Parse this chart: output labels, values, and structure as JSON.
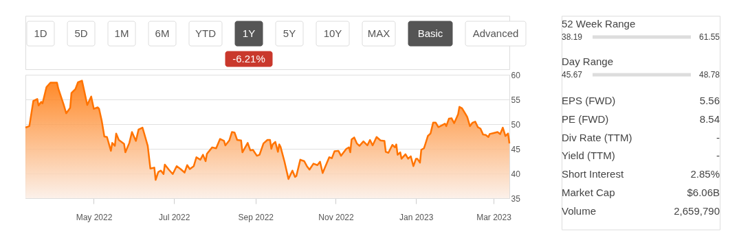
{
  "chart_data": [
    {
      "type": "area",
      "x": [
        "2022-03-10",
        "2022-03-13",
        "2022-03-16",
        "2022-03-19",
        "2022-03-20",
        "2022-03-22",
        "2022-03-23",
        "2022-03-26",
        "2022-03-29",
        "2022-04-03",
        "2022-04-04",
        "2022-04-08",
        "2022-04-10",
        "2022-04-13",
        "2022-04-14",
        "2022-04-17",
        "2022-04-19",
        "2022-04-22",
        "2022-04-24",
        "2022-04-26",
        "2022-04-29",
        "2022-05-01",
        "2022-05-04",
        "2022-05-05",
        "2022-05-07",
        "2022-05-09",
        "2022-05-11",
        "2022-05-14",
        "2022-05-15",
        "2022-05-17",
        "2022-05-18",
        "2022-05-20",
        "2022-05-24",
        "2022-05-25",
        "2022-05-28",
        "2022-05-30",
        "2022-06-02",
        "2022-06-04",
        "2022-06-07",
        "2022-06-08",
        "2022-06-11",
        "2022-06-13",
        "2022-06-16",
        "2022-06-17",
        "2022-06-19",
        "2022-06-21",
        "2022-06-23",
        "2022-06-24",
        "2022-06-27",
        "2022-06-30",
        "2022-07-03",
        "2022-07-06",
        "2022-07-09",
        "2022-07-11",
        "2022-07-13",
        "2022-07-16",
        "2022-07-18",
        "2022-07-21",
        "2022-07-23",
        "2022-07-25",
        "2022-07-26",
        "2022-07-30",
        "2022-08-02",
        "2022-08-05",
        "2022-08-08",
        "2022-08-09",
        "2022-08-12",
        "2022-08-14",
        "2022-08-16",
        "2022-08-18",
        "2022-08-21",
        "2022-08-22",
        "2022-08-26",
        "2022-08-28",
        "2022-08-30",
        "2022-09-02",
        "2022-09-04",
        "2022-09-07",
        "2022-09-10",
        "2022-09-12",
        "2022-09-13",
        "2022-09-14",
        "2022-09-16",
        "2022-09-18",
        "2022-09-19",
        "2022-09-20",
        "2022-09-23",
        "2022-09-26",
        "2022-09-29",
        "2022-10-01",
        "2022-10-02",
        "2022-10-05",
        "2022-10-08",
        "2022-10-10",
        "2022-10-12",
        "2022-10-15",
        "2022-10-18",
        "2022-10-20",
        "2022-10-22",
        "2022-10-27",
        "2022-10-29",
        "2022-10-31",
        "2022-11-03",
        "2022-11-05",
        "2022-11-07",
        "2022-11-09",
        "2022-11-11",
        "2022-11-12",
        "2022-11-13",
        "2022-11-15",
        "2022-11-17",
        "2022-11-19",
        "2022-11-22",
        "2022-11-25",
        "2022-11-27",
        "2022-11-29",
        "2022-12-02",
        "2022-12-05",
        "2022-12-08",
        "2022-12-09",
        "2022-12-11",
        "2022-12-14",
        "2022-12-16",
        "2022-12-17",
        "2022-12-18",
        "2022-12-20",
        "2022-12-21",
        "2022-12-24",
        "2022-12-26",
        "2022-12-28",
        "2022-12-30",
        "2023-01-01",
        "2023-01-02",
        "2023-01-04",
        "2023-01-05",
        "2023-01-07",
        "2023-01-08",
        "2023-01-10",
        "2023-01-12",
        "2023-01-14",
        "2023-01-16",
        "2023-01-18",
        "2023-01-21",
        "2023-01-23",
        "2023-01-24",
        "2023-01-26",
        "2023-01-28",
        "2023-01-30",
        "2023-02-01",
        "2023-02-02",
        "2023-02-03",
        "2023-02-05",
        "2023-02-08",
        "2023-02-09",
        "2023-02-11",
        "2023-02-13",
        "2023-02-15",
        "2023-02-17",
        "2023-02-19",
        "2023-02-21",
        "2023-02-23",
        "2023-02-25",
        "2023-02-26",
        "2023-03-01",
        "2023-03-04",
        "2023-03-06",
        "2023-03-08",
        "2023-03-10",
        "2023-03-12",
        "2023-03-13"
      ],
      "series": [
        {
          "color": "#ff7300",
          "values": [
            49.3,
            49.6,
            54.7,
            55.1,
            53.8,
            54.5,
            54.2,
            57.5,
            58.4,
            58.4,
            57.2,
            54.0,
            52.2,
            53.3,
            56.3,
            57.1,
            58.5,
            58.8,
            56.4,
            53.9,
            55.6,
            53.1,
            53.4,
            53.1,
            50.7,
            47.5,
            47.4,
            44.6,
            46.2,
            45.6,
            48.1,
            46.8,
            46.0,
            44.3,
            46.2,
            48.4,
            46.6,
            48.9,
            49.3,
            48.4,
            45.6,
            41.0,
            41.2,
            38.7,
            40.3,
            40.6,
            39.9,
            41.8,
            40.8,
            39.9,
            41.5,
            40.9,
            40.2,
            41.7,
            40.9,
            41.5,
            43.3,
            42.8,
            43.8,
            42.5,
            44.0,
            45.3,
            45.1,
            47.0,
            46.6,
            45.7,
            46.7,
            48.4,
            48.3,
            46.8,
            46.7,
            44.3,
            46.2,
            44.7,
            44.8,
            43.6,
            43.8,
            46.1,
            46.8,
            46.8,
            45.0,
            45.9,
            46.4,
            44.4,
            45.9,
            45.4,
            42.4,
            38.9,
            40.6,
            39.3,
            39.5,
            42.8,
            42.5,
            41.5,
            40.8,
            42.0,
            41.7,
            42.4,
            40.1,
            43.3,
            43.1,
            44.5,
            44.6,
            43.6,
            44.3,
            45.0,
            45.3,
            44.3,
            46.9,
            47.3,
            46.1,
            45.6,
            46.5,
            45.7,
            46.8,
            45.7,
            47.4,
            46.7,
            46.6,
            44.4,
            44.2,
            45.8,
            45.3,
            45.9,
            43.8,
            44.3,
            43.0,
            43.9,
            43.0,
            43.5,
            41.5,
            43.0,
            43.0,
            42.2,
            44.8,
            45.1,
            45.9,
            47.6,
            48.1,
            50.3,
            50.3,
            49.4,
            49.8,
            50.1,
            49.6,
            51.1,
            51.2,
            50.2,
            51.4,
            52.0,
            53.5,
            53.2,
            51.9,
            51.4,
            49.6,
            50.3,
            50.5,
            49.4,
            49.1,
            47.9,
            47.8,
            47.4,
            48.0,
            48.2,
            48.4,
            48.0,
            49.3,
            47.6,
            48.1,
            46.1
          ]
        }
      ],
      "xlim": [
        "2022-03-10",
        "2023-03-13"
      ],
      "xticks": [
        {
          "value": "2022-05-01",
          "label": "May 2022"
        },
        {
          "value": "2022-07-01",
          "label": "Jul 2022"
        },
        {
          "value": "2022-09-01",
          "label": "Sep 2022"
        },
        {
          "value": "2022-11-01",
          "label": "Nov 2022"
        },
        {
          "value": "2023-01-01",
          "label": "Jan 2023"
        },
        {
          "value": "2023-03-01",
          "label": "Mar 2023"
        }
      ],
      "ylim": [
        35,
        60
      ],
      "yticks": [
        35,
        40,
        45,
        50,
        55,
        60
      ],
      "grid": "y",
      "annotations": [
        "1D",
        "5D",
        "1M",
        "6M",
        "YTD",
        "1Y",
        "5Y",
        "10Y",
        "MAX",
        "Basic",
        "Advanced",
        "-6.21%"
      ]
    },
    {
      "type": "other",
      "annotations": [
        "52 Week Range",
        "38.19",
        "61.55",
        "Day Range",
        "45.67",
        "48.78",
        "EPS (FWD)",
        "5.56",
        "PE (FWD)",
        "8.54",
        "Div Rate (TTM)",
        "-",
        "Yield (TTM)",
        "-",
        "Short Interest",
        "2.85%",
        "Market Cap",
        "$6.06B",
        "Volume",
        "2,659,790"
      ]
    }
  ]
}
